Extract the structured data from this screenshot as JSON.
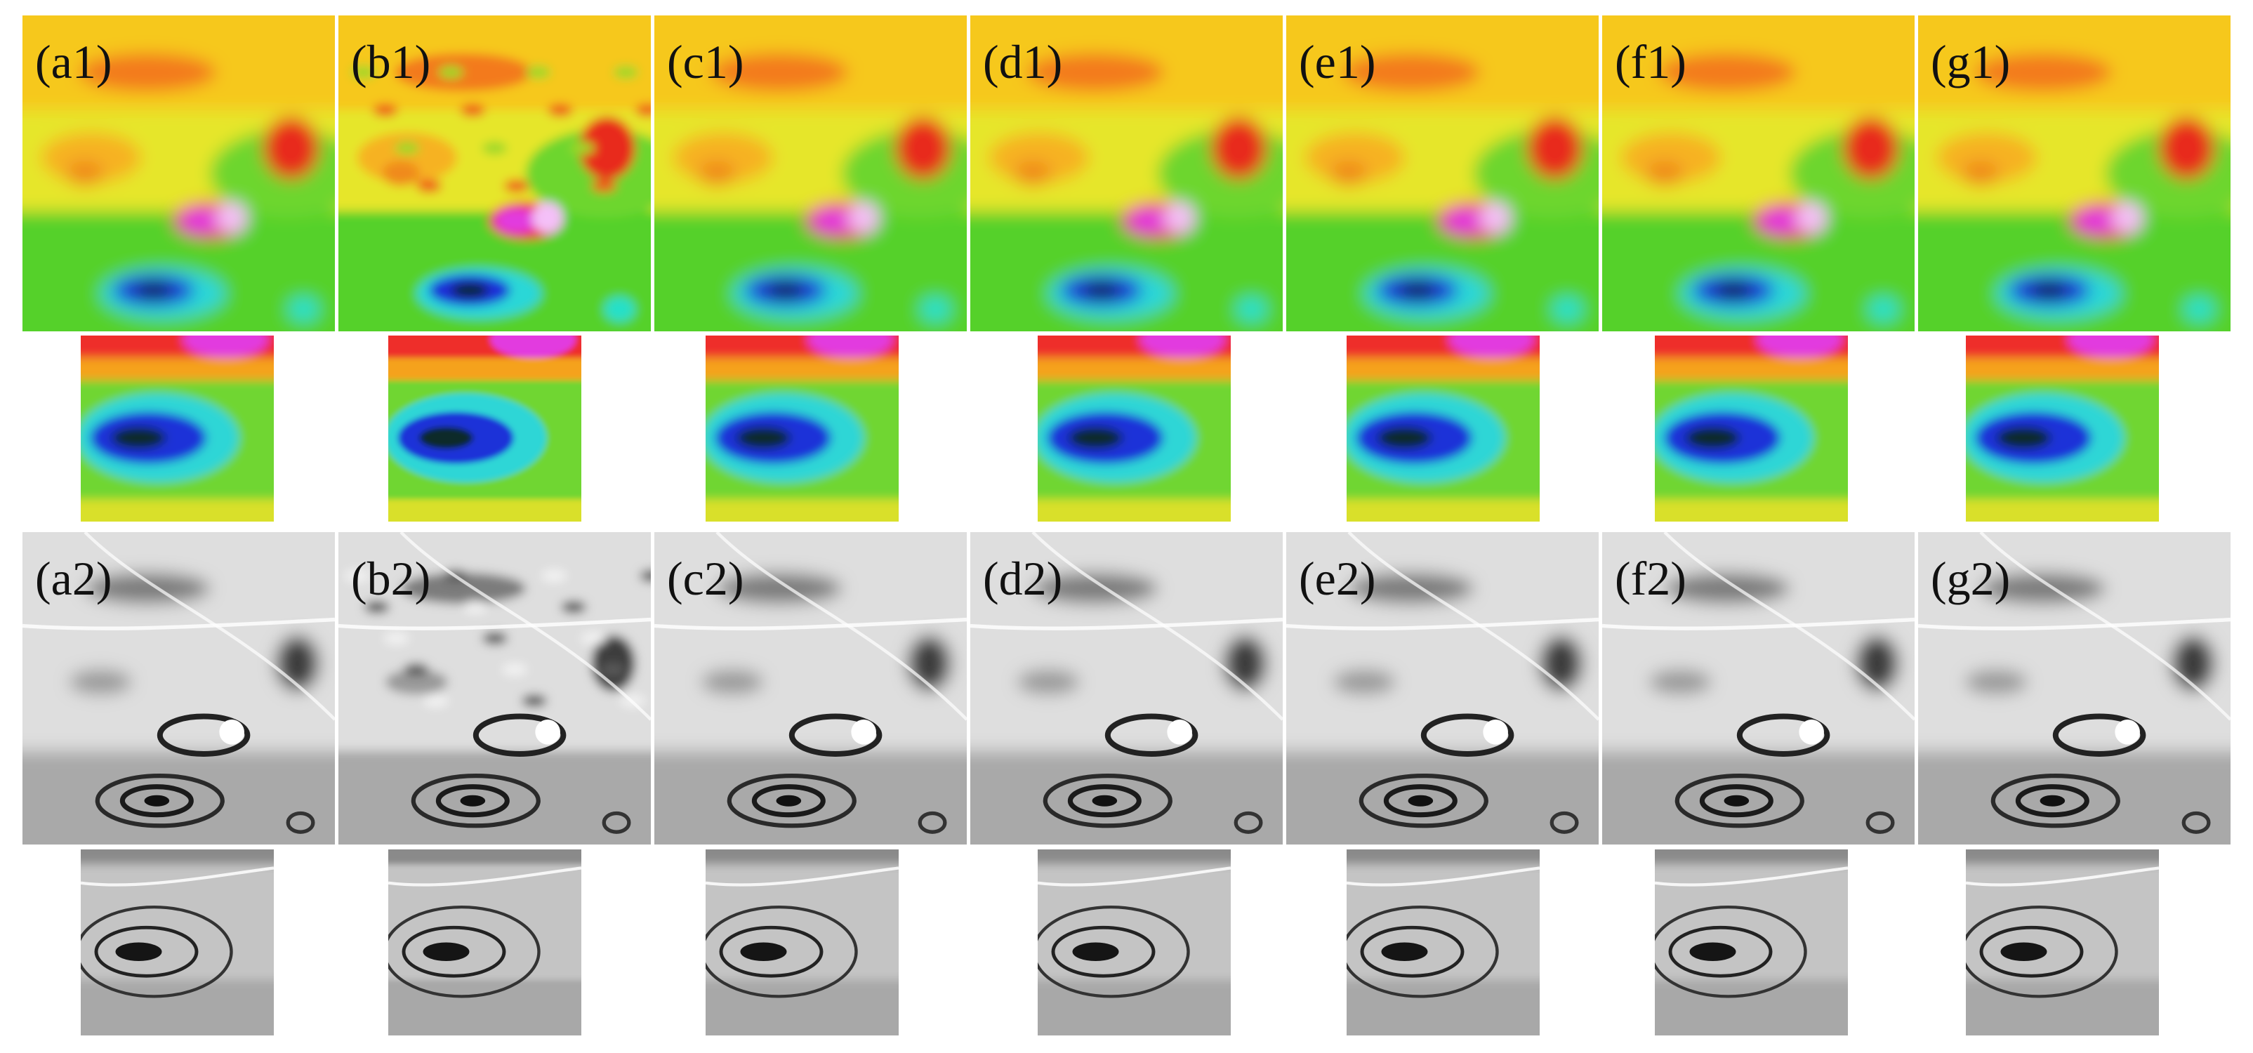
{
  "row1_labels": [
    "(a1)",
    "(b1)",
    "(c1)",
    "(d1)",
    "(e1)",
    "(f1)",
    "(g1)"
  ],
  "row2_labels": [
    "(a2)",
    "(b2)",
    "(c2)",
    "(d2)",
    "(e2)",
    "(f2)",
    "(g2)"
  ]
}
